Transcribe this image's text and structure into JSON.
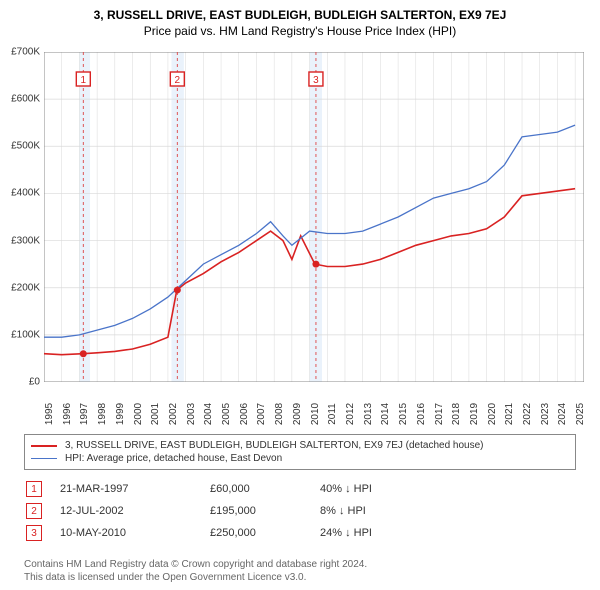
{
  "title": {
    "main": "3, RUSSELL DRIVE, EAST BUDLEIGH, BUDLEIGH SALTERTON, EX9 7EJ",
    "sub": "Price paid vs. HM Land Registry's House Price Index (HPI)"
  },
  "chart": {
    "type": "line",
    "background_color": "#ffffff",
    "grid_color": "#d9d9d9",
    "axis_color": "#888888",
    "shade_color": "#eaf2fb",
    "vdash_color": "#d44",
    "ylim": [
      0,
      700000
    ],
    "ytick_step": 100000,
    "ylabels": [
      "£0",
      "£100K",
      "£200K",
      "£300K",
      "£400K",
      "£500K",
      "£600K",
      "£700K"
    ],
    "xlim": [
      1995,
      2025.5
    ],
    "xticks": [
      1995,
      1996,
      1997,
      1998,
      1999,
      2000,
      2001,
      2002,
      2003,
      2004,
      2005,
      2006,
      2007,
      2008,
      2009,
      2010,
      2011,
      2012,
      2013,
      2014,
      2015,
      2016,
      2017,
      2018,
      2019,
      2020,
      2021,
      2022,
      2023,
      2024,
      2025
    ],
    "shaded_ranges": [
      [
        1997.0,
        1997.6
      ],
      [
        2002.2,
        2002.9
      ],
      [
        2010.0,
        2010.7
      ]
    ],
    "series": [
      {
        "name": "property",
        "color": "#d92222",
        "width": 1.6,
        "points": [
          [
            1995.0,
            60000
          ],
          [
            1996.0,
            58000
          ],
          [
            1997.2,
            60000
          ],
          [
            1998.0,
            62000
          ],
          [
            1999.0,
            65000
          ],
          [
            2000.0,
            70000
          ],
          [
            2001.0,
            80000
          ],
          [
            2002.0,
            95000
          ],
          [
            2002.5,
            195000
          ],
          [
            2003.0,
            210000
          ],
          [
            2004.0,
            230000
          ],
          [
            2005.0,
            255000
          ],
          [
            2006.0,
            275000
          ],
          [
            2007.0,
            300000
          ],
          [
            2007.8,
            320000
          ],
          [
            2008.5,
            300000
          ],
          [
            2009.0,
            260000
          ],
          [
            2009.5,
            310000
          ],
          [
            2010.3,
            250000
          ],
          [
            2011.0,
            245000
          ],
          [
            2012.0,
            245000
          ],
          [
            2013.0,
            250000
          ],
          [
            2014.0,
            260000
          ],
          [
            2015.0,
            275000
          ],
          [
            2016.0,
            290000
          ],
          [
            2017.0,
            300000
          ],
          [
            2018.0,
            310000
          ],
          [
            2019.0,
            315000
          ],
          [
            2020.0,
            325000
          ],
          [
            2021.0,
            350000
          ],
          [
            2022.0,
            395000
          ],
          [
            2023.0,
            400000
          ],
          [
            2024.0,
            405000
          ],
          [
            2025.0,
            410000
          ]
        ]
      },
      {
        "name": "hpi",
        "color": "#4a74c9",
        "width": 1.3,
        "points": [
          [
            1995.0,
            95000
          ],
          [
            1996.0,
            95000
          ],
          [
            1997.0,
            100000
          ],
          [
            1998.0,
            110000
          ],
          [
            1999.0,
            120000
          ],
          [
            2000.0,
            135000
          ],
          [
            2001.0,
            155000
          ],
          [
            2002.0,
            180000
          ],
          [
            2003.0,
            215000
          ],
          [
            2004.0,
            250000
          ],
          [
            2005.0,
            270000
          ],
          [
            2006.0,
            290000
          ],
          [
            2007.0,
            315000
          ],
          [
            2007.8,
            340000
          ],
          [
            2008.5,
            310000
          ],
          [
            2009.0,
            290000
          ],
          [
            2010.0,
            320000
          ],
          [
            2011.0,
            315000
          ],
          [
            2012.0,
            315000
          ],
          [
            2013.0,
            320000
          ],
          [
            2014.0,
            335000
          ],
          [
            2015.0,
            350000
          ],
          [
            2016.0,
            370000
          ],
          [
            2017.0,
            390000
          ],
          [
            2018.0,
            400000
          ],
          [
            2019.0,
            410000
          ],
          [
            2020.0,
            425000
          ],
          [
            2021.0,
            460000
          ],
          [
            2022.0,
            520000
          ],
          [
            2023.0,
            525000
          ],
          [
            2024.0,
            530000
          ],
          [
            2025.0,
            545000
          ]
        ]
      }
    ],
    "markers": [
      {
        "n": "1",
        "x": 1997.22,
        "y": 60000,
        "color": "#d92222"
      },
      {
        "n": "2",
        "x": 2002.53,
        "y": 195000,
        "color": "#d92222"
      },
      {
        "n": "3",
        "x": 2010.36,
        "y": 250000,
        "color": "#d92222"
      }
    ]
  },
  "legend": {
    "items": [
      {
        "color": "#d92222",
        "width": 2,
        "label": "3, RUSSELL DRIVE, EAST BUDLEIGH, BUDLEIGH SALTERTON, EX9 7EJ (detached house)"
      },
      {
        "color": "#4a74c9",
        "width": 1.3,
        "label": "HPI: Average price, detached house, East Devon"
      }
    ]
  },
  "sales": [
    {
      "n": "1",
      "date": "21-MAR-1997",
      "price": "£60,000",
      "pct": "40% ↓ HPI",
      "color": "#d92222"
    },
    {
      "n": "2",
      "date": "12-JUL-2002",
      "price": "£195,000",
      "pct": "8% ↓ HPI",
      "color": "#d92222"
    },
    {
      "n": "3",
      "date": "10-MAY-2010",
      "price": "£250,000",
      "pct": "24% ↓ HPI",
      "color": "#d92222"
    }
  ],
  "footer": {
    "line1": "Contains HM Land Registry data © Crown copyright and database right 2024.",
    "line2": "This data is licensed under the Open Government Licence v3.0."
  }
}
